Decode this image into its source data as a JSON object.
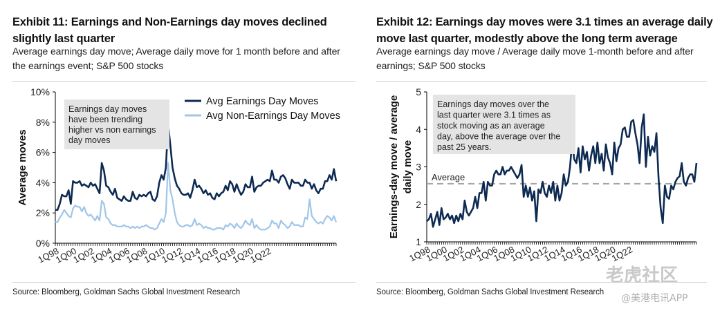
{
  "left": {
    "title": "Exhibit 11: Earnings and Non-Earnings day moves declined slightly last quarter",
    "subtitle": "Average earnings day move; Average daily move for 1 month before and after the earnings event; S&P 500 stocks",
    "source": "Source: Bloomberg, Goldman Sachs Global Investment Research",
    "annotation": [
      "Earnings day moves",
      "have been trending",
      "higher vs non earnings",
      "day moves"
    ]
  },
  "right": {
    "title": "Exhibit 12: Earnings day moves were 3.1 times an average daily move last quarter, modestly above the long term average",
    "subtitle": "Average earnings day move / Average daily move 1-month before and after earnings; S&P 500 stocks",
    "source": "Source: Bloomberg, Goldman Sachs Global Investment Research",
    "annotation": [
      "Earnings day moves over the",
      "last quarter were 3.1 times as",
      "stock moving as an average",
      "day, above the average over the",
      "past 25 years."
    ],
    "average_label": "Average"
  },
  "watermark": {
    "text1": "老虎社区",
    "text2": "@美港电讯APP"
  },
  "colors": {
    "dark_navy": "#0d2a52",
    "light_blue": "#9fc5e8",
    "average_dash": "#a6a6a6",
    "annotation_bg": "#e4e4e4"
  },
  "chart_data": [
    {
      "type": "line",
      "x_start": "1Q98",
      "x_tick_labels": [
        "1Q98",
        "1Q00",
        "1Q02",
        "1Q04",
        "1Q06",
        "1Q08",
        "1Q10",
        "1Q12",
        "1Q14",
        "1Q16",
        "1Q18",
        "1Q20",
        "1Q22"
      ],
      "ylabel": "Average moves",
      "ylim": [
        0,
        10
      ],
      "y_tick_labels": [
        "0%",
        "2%",
        "4%",
        "6%",
        "8%",
        "10%"
      ],
      "grid": false,
      "legend": "top-right",
      "series": [
        {
          "name": "Avg Earnings Day Moves",
          "color": "#0d2a52",
          "values": [
            2.2,
            2.2,
            2.6,
            3.2,
            3.1,
            3.1,
            3.5,
            2.6,
            4.1,
            4.0,
            4.0,
            4.1,
            3.8,
            3.9,
            3.8,
            3.7,
            4.0,
            3.8,
            3.9,
            3.6,
            3.3,
            5.3,
            4.8,
            3.8,
            3.7,
            3.4,
            3.2,
            3.6,
            3.0,
            2.9,
            2.8,
            3.1,
            2.9,
            2.8,
            2.8,
            3.4,
            3.0,
            2.9,
            3.2,
            3.1,
            3.2,
            3.1,
            3.3,
            3.4,
            2.9,
            2.8,
            3.1,
            4.0,
            4.5,
            4.2,
            5.0,
            7.9,
            6.5,
            5.0,
            4.3,
            3.8,
            3.6,
            3.3,
            3.2,
            3.2,
            3.3,
            3.0,
            3.5,
            4.2,
            3.7,
            3.8,
            3.6,
            3.3,
            3.5,
            3.2,
            3.3,
            3.0,
            2.9,
            3.3,
            3.1,
            3.3,
            3.4,
            3.8,
            3.5,
            4.1,
            3.9,
            3.4,
            3.9,
            3.5,
            3.2,
            3.4,
            3.9,
            3.7,
            3.7,
            4.4,
            3.4,
            3.7,
            3.8,
            3.8,
            4.0,
            4.1,
            4.2,
            4.1,
            4.8,
            4.2,
            4.2,
            4.0,
            4.4,
            4.5,
            4.3,
            3.9,
            3.6,
            4.2,
            4.0,
            4.0,
            4.0,
            3.8,
            3.8,
            4.2,
            4.0,
            4.0,
            3.6,
            3.9,
            3.5,
            3.3,
            3.6,
            3.6,
            4.1,
            4.1,
            4.5,
            4.2,
            4.9,
            4.1
          ]
        },
        {
          "name": "Avg Non-Earnings Day Moves",
          "color": "#9fc5e8",
          "values": [
            1.4,
            1.4,
            1.7,
            1.9,
            2.2,
            2.0,
            1.8,
            1.7,
            2.3,
            2.5,
            2.4,
            2.4,
            2.1,
            2.4,
            2.0,
            1.8,
            1.9,
            1.7,
            1.5,
            1.8,
            1.5,
            2.8,
            2.6,
            1.7,
            1.6,
            1.3,
            1.2,
            1.2,
            1.1,
            1.1,
            1.1,
            1.2,
            1.1,
            1.1,
            1.0,
            1.1,
            1.0,
            1.1,
            1.0,
            1.1,
            1.1,
            1.2,
            1.1,
            1.0,
            1.0,
            0.9,
            1.0,
            1.3,
            1.6,
            1.4,
            2.0,
            5.3,
            3.5,
            2.9,
            2.0,
            1.4,
            1.2,
            1.1,
            1.1,
            1.2,
            1.2,
            1.1,
            1.2,
            1.6,
            1.2,
            1.3,
            1.2,
            1.0,
            1.1,
            1.0,
            1.0,
            0.9,
            0.9,
            1.0,
            1.0,
            1.0,
            0.9,
            1.2,
            1.1,
            1.3,
            1.2,
            1.0,
            1.3,
            1.1,
            1.0,
            1.2,
            1.5,
            1.3,
            1.2,
            1.6,
            1.0,
            1.2,
            1.0,
            0.9,
            0.9,
            0.9,
            1.0,
            1.1,
            1.5,
            1.3,
            1.3,
            1.0,
            1.5,
            1.3,
            1.2,
            1.0,
            1.1,
            1.4,
            1.2,
            1.2,
            1.2,
            1.1,
            1.1,
            1.7,
            1.6,
            2.9,
            1.8,
            1.6,
            1.4,
            1.3,
            1.4,
            1.3,
            1.6,
            1.8,
            1.7,
            1.5,
            1.8,
            1.4
          ]
        }
      ]
    },
    {
      "type": "line",
      "x_start": "1Q98",
      "x_tick_labels": [
        "1Q98",
        "1Q00",
        "1Q02",
        "1Q04",
        "1Q06",
        "1Q08",
        "1Q10",
        "1Q12",
        "1Q14",
        "1Q16",
        "1Q18",
        "1Q20",
        "1Q22"
      ],
      "ylabel": "Earnings-day move / average daily move",
      "ylim": [
        1,
        5
      ],
      "y_tick_labels": [
        "1",
        "2",
        "3",
        "4",
        "5"
      ],
      "grid": false,
      "average": 2.55,
      "series": [
        {
          "color": "#0d2a52",
          "values": [
            1.55,
            1.6,
            1.75,
            1.4,
            1.6,
            1.8,
            1.45,
            1.9,
            1.6,
            1.65,
            1.75,
            1.6,
            1.7,
            1.5,
            1.7,
            1.55,
            1.75,
            1.6,
            2.1,
            1.8,
            1.7,
            1.8,
            1.9,
            2.2,
            1.9,
            2.3,
            2.3,
            2.6,
            2.1,
            2.6,
            2.5,
            2.5,
            2.8,
            2.9,
            2.8,
            2.8,
            3.0,
            2.8,
            2.9,
            2.9,
            3.0,
            2.9,
            2.8,
            2.7,
            2.8,
            3.05,
            2.2,
            2.5,
            2.2,
            2.45,
            2.1,
            2.35,
            1.55,
            2.4,
            2.3,
            2.6,
            2.3,
            2.2,
            2.5,
            2.3,
            2.6,
            2.1,
            2.5,
            2.1,
            2.3,
            2.8,
            2.5,
            2.6,
            3.0,
            3.7,
            3.2,
            3.1,
            3.5,
            2.85,
            3.55,
            3.2,
            3.4,
            2.9,
            3.3,
            3.55,
            3.1,
            3.65,
            3.1,
            3.35,
            2.9,
            3.6,
            3.25,
            3.1,
            2.8,
            3.65,
            3.15,
            3.5,
            3.6,
            4.0,
            4.05,
            3.8,
            3.8,
            4.2,
            4.25,
            3.9,
            3.6,
            3.1,
            4.05,
            4.4,
            3.0,
            3.8,
            3.3,
            3.55,
            3.4,
            3.9,
            2.7,
            1.9,
            1.5,
            2.5,
            2.2,
            2.15,
            2.5,
            2.4,
            2.6,
            2.7,
            2.75,
            3.1,
            2.6,
            2.5,
            2.7,
            2.8,
            2.8,
            2.6,
            3.1
          ]
        }
      ]
    }
  ]
}
